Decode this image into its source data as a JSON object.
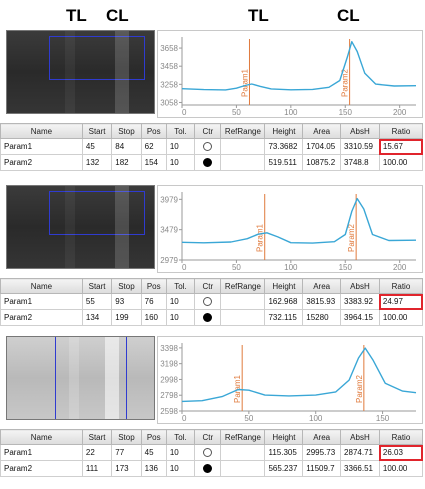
{
  "headers": {
    "strip_tl": "TL",
    "strip_cl": "CL",
    "chart_tl": "TL",
    "chart_cl": "CL"
  },
  "colors": {
    "curve": "#3aa7d6",
    "marker": "#e07a3c",
    "window": "#2f3bd0",
    "highlight": "#e0242c"
  },
  "columns": [
    "Name",
    "Start",
    "Stop",
    "Pos",
    "Tol.",
    "Ctr",
    "RefRange",
    "Height",
    "Area",
    "AbsH",
    "Ratio"
  ],
  "panels": [
    {
      "strip": {
        "tone": "dark"
      },
      "chart_data": {
        "type": "line",
        "x_ticks": [
          "0",
          "50",
          "100",
          "150",
          "200"
        ],
        "y_ticks": [
          "3658",
          "3458",
          "3258",
          "3058"
        ],
        "xlim": [
          0,
          215
        ],
        "ylim": [
          3030,
          3780
        ],
        "markers": [
          {
            "label": "Param1",
            "x": 62
          },
          {
            "label": "Param2",
            "x": 154
          }
        ],
        "curve": [
          [
            0,
            3210
          ],
          [
            20,
            3200
          ],
          [
            40,
            3196
          ],
          [
            50,
            3215
          ],
          [
            58,
            3245
          ],
          [
            64,
            3262
          ],
          [
            72,
            3235
          ],
          [
            82,
            3208
          ],
          [
            100,
            3198
          ],
          [
            120,
            3202
          ],
          [
            135,
            3225
          ],
          [
            145,
            3300
          ],
          [
            152,
            3560
          ],
          [
            156,
            3728
          ],
          [
            161,
            3620
          ],
          [
            168,
            3380
          ],
          [
            178,
            3260
          ],
          [
            195,
            3240
          ],
          [
            215,
            3243
          ]
        ]
      },
      "rows": [
        {
          "name": "Param1",
          "start": "45",
          "stop": "84",
          "pos": "62",
          "tol": "10",
          "ctr": false,
          "refrange": "",
          "height": "73.3682",
          "area": "1704.05",
          "absh": "3310.59",
          "ratio": "15.67",
          "highlight": true
        },
        {
          "name": "Param2",
          "start": "132",
          "stop": "182",
          "pos": "154",
          "tol": "10",
          "ctr": true,
          "refrange": "",
          "height": "519.511",
          "area": "10875.2",
          "absh": "3748.8",
          "ratio": "100.00",
          "highlight": false
        }
      ]
    },
    {
      "strip": {
        "tone": "dark"
      },
      "chart_data": {
        "type": "line",
        "x_ticks": [
          "0",
          "50",
          "100",
          "150",
          "200"
        ],
        "y_ticks": [
          "3979",
          "3479",
          "2979"
        ],
        "xlim": [
          0,
          215
        ],
        "ylim": [
          2979,
          4100
        ],
        "markers": [
          {
            "label": "Param1",
            "x": 76
          },
          {
            "label": "Param2",
            "x": 160
          }
        ],
        "curve": [
          [
            0,
            3270
          ],
          [
            20,
            3262
          ],
          [
            45,
            3275
          ],
          [
            60,
            3330
          ],
          [
            70,
            3405
          ],
          [
            78,
            3428
          ],
          [
            88,
            3360
          ],
          [
            100,
            3265
          ],
          [
            120,
            3258
          ],
          [
            140,
            3280
          ],
          [
            150,
            3400
          ],
          [
            156,
            3780
          ],
          [
            161,
            3992
          ],
          [
            167,
            3820
          ],
          [
            175,
            3400
          ],
          [
            190,
            3300
          ],
          [
            215,
            3305
          ]
        ]
      },
      "rows": [
        {
          "name": "Param1",
          "start": "55",
          "stop": "93",
          "pos": "76",
          "tol": "10",
          "ctr": false,
          "refrange": "",
          "height": "162.968",
          "area": "3815.93",
          "absh": "3383.92",
          "ratio": "24.97",
          "highlight": true
        },
        {
          "name": "Param2",
          "start": "134",
          "stop": "199",
          "pos": "160",
          "tol": "10",
          "ctr": true,
          "refrange": "",
          "height": "732.115",
          "area": "15280",
          "absh": "3964.15",
          "ratio": "100.00",
          "highlight": false
        }
      ]
    },
    {
      "strip": {
        "tone": "light"
      },
      "chart_data": {
        "type": "line",
        "x_ticks": [
          "0",
          "50",
          "100",
          "150"
        ],
        "y_ticks": [
          "3398",
          "3198",
          "2998",
          "2798",
          "2598"
        ],
        "xlim": [
          0,
          175
        ],
        "ylim": [
          2598,
          3460
        ],
        "markers": [
          {
            "label": "Param1",
            "x": 45
          },
          {
            "label": "Param2",
            "x": 136
          }
        ],
        "curve": [
          [
            0,
            2720
          ],
          [
            15,
            2728
          ],
          [
            30,
            2780
          ],
          [
            42,
            2870
          ],
          [
            50,
            2862
          ],
          [
            62,
            2800
          ],
          [
            80,
            2790
          ],
          [
            100,
            2800
          ],
          [
            115,
            2840
          ],
          [
            125,
            2990
          ],
          [
            132,
            3270
          ],
          [
            137,
            3395
          ],
          [
            143,
            3240
          ],
          [
            152,
            2950
          ],
          [
            165,
            2850
          ],
          [
            175,
            2830
          ]
        ]
      },
      "rows": [
        {
          "name": "Param1",
          "start": "22",
          "stop": "77",
          "pos": "45",
          "tol": "10",
          "ctr": false,
          "refrange": "",
          "height": "115.305",
          "area": "2995.73",
          "absh": "2874.71",
          "ratio": "26.03",
          "highlight": true
        },
        {
          "name": "Param2",
          "start": "111",
          "stop": "173",
          "pos": "136",
          "tol": "10",
          "ctr": true,
          "refrange": "",
          "height": "565.237",
          "area": "11509.7",
          "absh": "3366.51",
          "ratio": "100.00",
          "highlight": false
        }
      ]
    }
  ]
}
